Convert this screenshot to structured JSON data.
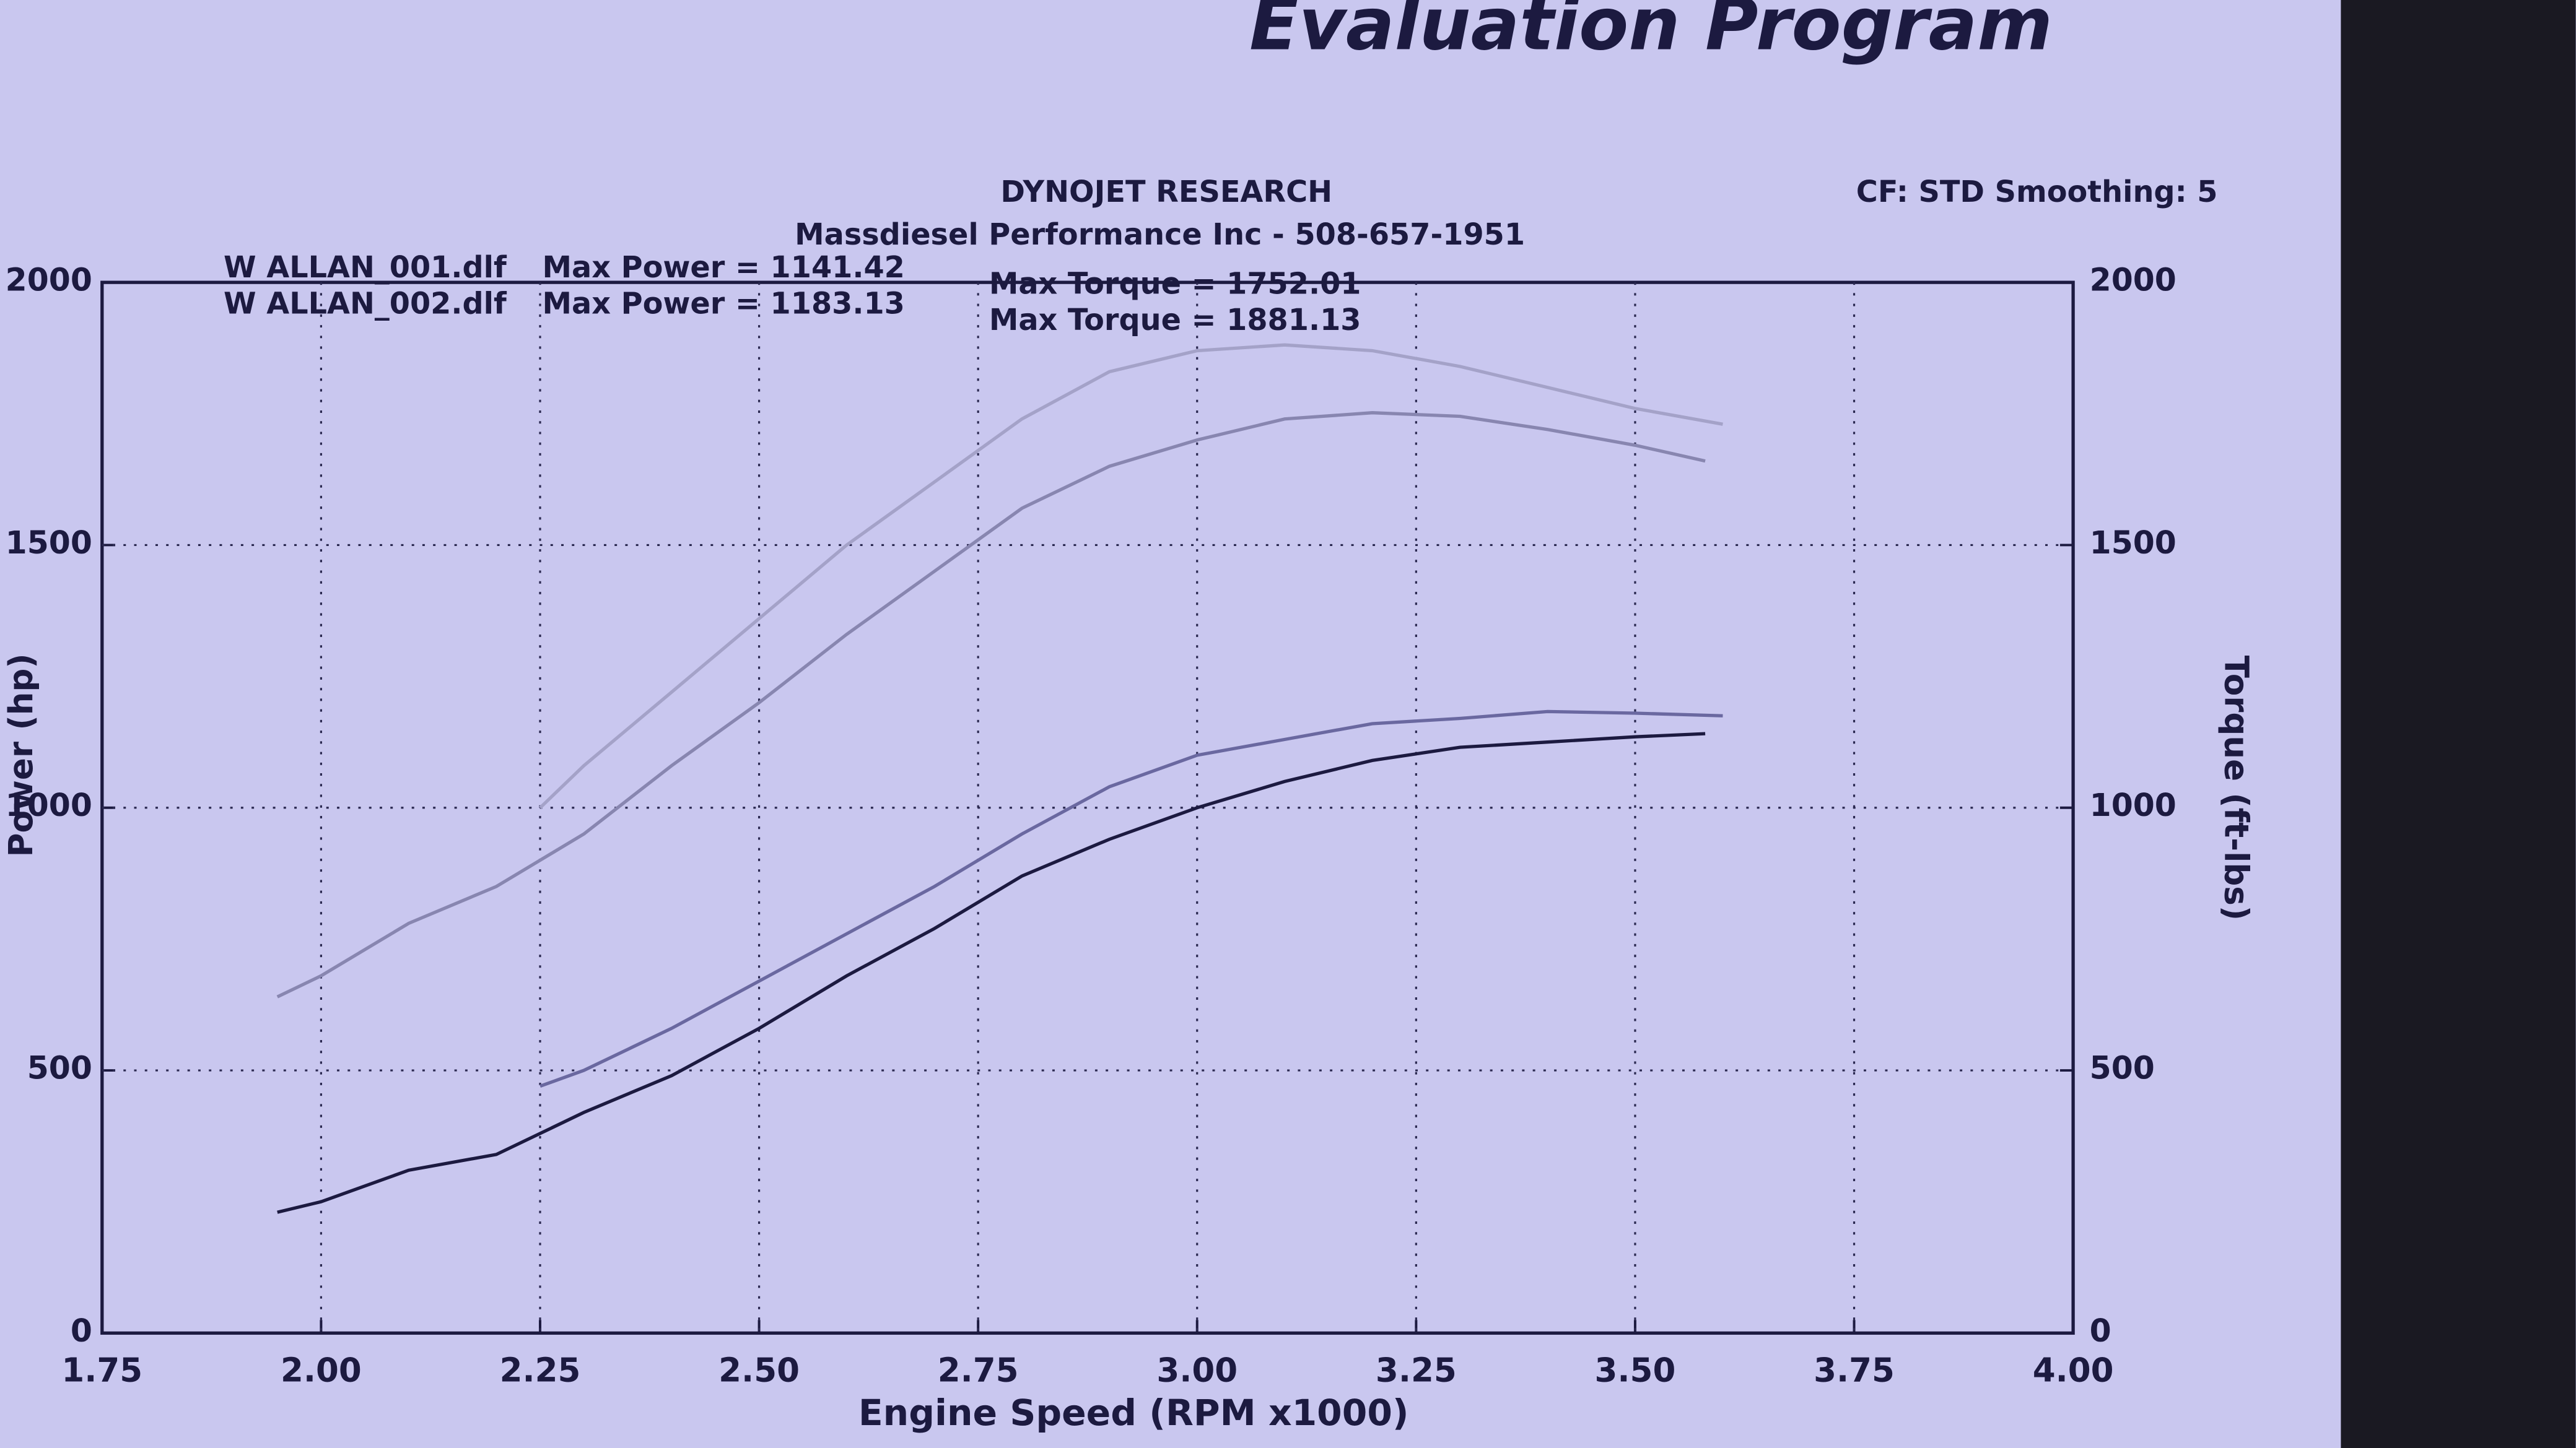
{
  "header": "Evaluation Program",
  "chart_data": {
    "type": "line",
    "title": "DYNOJET RESEARCH",
    "subtitle": "Massdiesel Performance Inc - 508-657-1951",
    "settings_text": "CF: STD  Smoothing: 5",
    "xlabel": "Engine Speed (RPM x1000)",
    "ylabel": "Power (hp)",
    "y2label": "Torque (ft-lbs)",
    "annotations": [
      "Max Power = 1141.42",
      "Max Torque = 1752.01",
      "Max Power = 1183.13",
      "Max Torque = 1881.13"
    ],
    "xlim": [
      1.75,
      4.0
    ],
    "xticks": [
      1.75,
      {
        "value": 2.0,
        "label": "2.00"
      },
      2.25,
      {
        "value": 2.5,
        "label": "2.50"
      },
      2.75,
      {
        "value": 3.0,
        "label": "3.00"
      },
      3.25,
      {
        "value": 3.5,
        "label": "3.50"
      },
      3.75,
      {
        "value": 4.0,
        "label": "4.00"
      }
    ],
    "ylim": [
      0,
      2000
    ],
    "yticks": [
      0,
      500,
      1000,
      1500,
      2000
    ],
    "y2lim": [
      0,
      2000
    ],
    "y2ticks": [
      0,
      500,
      1000,
      1500,
      2000
    ],
    "grid": true,
    "series": [
      {
        "name": "W ALLAN_001.dlf",
        "color": "#1c1a40",
        "axis": "y",
        "x": [
          1.95,
          2.0,
          2.1,
          2.2,
          2.25,
          2.3,
          2.4,
          2.5,
          2.6,
          2.7,
          2.8,
          2.9,
          3.0,
          3.1,
          3.2,
          3.3,
          3.4,
          3.5,
          3.58
        ],
        "values": [
          230,
          250,
          310,
          340,
          380,
          420,
          490,
          580,
          680,
          770,
          870,
          940,
          1000,
          1050,
          1090,
          1115,
          1125,
          1135,
          1141
        ]
      },
      {
        "name": "W ALLAN_001.dlf",
        "color": "#8886b0",
        "axis": "y2",
        "x": [
          1.95,
          2.0,
          2.1,
          2.2,
          2.3,
          2.4,
          2.5,
          2.6,
          2.7,
          2.8,
          2.9,
          3.0,
          3.1,
          3.2,
          3.3,
          3.4,
          3.5,
          3.58
        ],
        "values": [
          640,
          680,
          780,
          850,
          950,
          1080,
          1200,
          1330,
          1450,
          1570,
          1650,
          1700,
          1740,
          1752,
          1745,
          1720,
          1690,
          1660
        ]
      },
      {
        "name": "W ALLAN_002.dlf",
        "color": "#6a68a0",
        "axis": "y",
        "x": [
          2.25,
          2.3,
          2.4,
          2.5,
          2.6,
          2.7,
          2.8,
          2.9,
          3.0,
          3.1,
          3.2,
          3.3,
          3.4,
          3.5,
          3.6
        ],
        "values": [
          470,
          500,
          580,
          670,
          760,
          850,
          950,
          1040,
          1100,
          1130,
          1160,
          1170,
          1183,
          1180,
          1175
        ]
      },
      {
        "name": "W ALLAN_002.dlf",
        "color": "#a4a2c8",
        "axis": "y2",
        "x": [
          2.25,
          2.3,
          2.4,
          2.5,
          2.6,
          2.7,
          2.8,
          2.9,
          3.0,
          3.1,
          3.2,
          3.3,
          3.4,
          3.5,
          3.6
        ],
        "values": [
          1000,
          1080,
          1220,
          1360,
          1500,
          1620,
          1740,
          1830,
          1870,
          1881,
          1870,
          1840,
          1800,
          1760,
          1730
        ]
      }
    ]
  }
}
